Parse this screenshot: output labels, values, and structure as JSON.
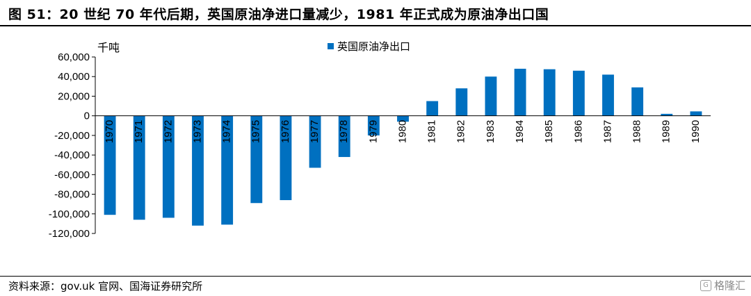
{
  "figure": {
    "title": "图 51：20 世纪 70 年代后期，英国原油净进口量减少，1981 年正式成为原油净出口国",
    "source": "资料来源：gov.uk 官网、国海证券研究所",
    "watermark": "格隆汇",
    "watermark_icon": "glh-logo-icon"
  },
  "chart_data": {
    "type": "bar",
    "unit_label": "千吨",
    "legend_position": "top-center",
    "categories": [
      "1970",
      "1971",
      "1972",
      "1973",
      "1974",
      "1975",
      "1976",
      "1977",
      "1978",
      "1979",
      "1980",
      "1981",
      "1982",
      "1983",
      "1984",
      "1985",
      "1986",
      "1987",
      "1988",
      "1989",
      "1990"
    ],
    "series": [
      {
        "name": "英国原油净出口",
        "color": "#0070C0",
        "values": [
          -101000,
          -106000,
          -104000,
          -112000,
          -111000,
          -89000,
          -86000,
          -53000,
          -42000,
          -20000,
          -6000,
          15000,
          28000,
          40000,
          48000,
          47500,
          46000,
          42000,
          29000,
          2000,
          4500
        ]
      }
    ],
    "ylim": [
      -120000,
      60000
    ],
    "yticks": [
      60000,
      40000,
      20000,
      0,
      -20000,
      -40000,
      -60000,
      -80000,
      -100000,
      -120000
    ],
    "ytick_labels": [
      "60,000",
      "40,000",
      "20,000",
      "0",
      "-20,000",
      "-40,000",
      "-60,000",
      "-80,000",
      "-100,000",
      "-120,000"
    ],
    "grid": false
  }
}
